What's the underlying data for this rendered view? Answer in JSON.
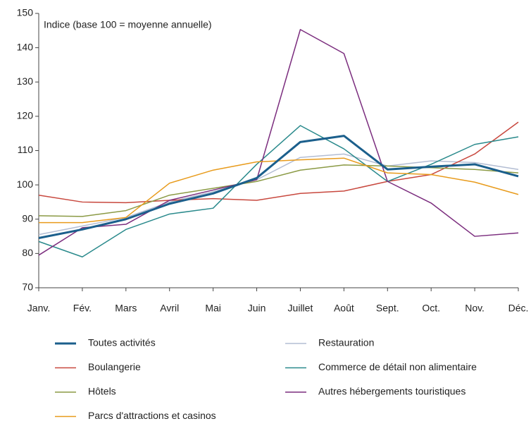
{
  "chart_data": {
    "type": "line",
    "annotation": "Indice (base 100 = moyenne annuelle)",
    "categories": [
      "Janv.",
      "Fév.",
      "Mars",
      "Avril",
      "Mai",
      "Juin",
      "Juillet",
      "Août",
      "Sept.",
      "Oct.",
      "Nov.",
      "Déc."
    ],
    "ylim": [
      70,
      150
    ],
    "yticks": [
      70,
      80,
      90,
      100,
      110,
      120,
      130,
      140,
      150
    ],
    "grid": false,
    "series": [
      {
        "name": "Toutes activités",
        "color": "#1b5f8c",
        "linewidth": 3,
        "values": [
          84.5,
          87,
          90,
          94.5,
          97.5,
          102,
          112.5,
          114.3,
          104.5,
          105.3,
          106,
          102.5
        ]
      },
      {
        "name": "Restauration",
        "color": "#b3bdd3",
        "linewidth": 1.5,
        "values": [
          85.5,
          88,
          90.5,
          95,
          98,
          101.5,
          108,
          109,
          105.5,
          107,
          106.5,
          104.5
        ]
      },
      {
        "name": "Boulangerie",
        "color": "#c8483e",
        "linewidth": 1.5,
        "values": [
          97,
          95,
          94.8,
          95.5,
          96,
          95.5,
          97.5,
          98.2,
          101,
          103,
          109,
          118.3
        ]
      },
      {
        "name": "Commerce de détail non alimentaire",
        "color": "#2a8a8c",
        "linewidth": 1.5,
        "values": [
          83.5,
          79,
          87,
          91.5,
          93.2,
          106,
          117.3,
          110.5,
          101,
          106,
          111.8,
          114
        ]
      },
      {
        "name": "Hôtels",
        "color": "#8b9a45",
        "linewidth": 1.5,
        "values": [
          91,
          90.8,
          92.5,
          97,
          99,
          101,
          104.3,
          105.8,
          105.5,
          105,
          104.5,
          103.5
        ]
      },
      {
        "name": "Autres hébergements touristiques",
        "color": "#7b2d7e",
        "linewidth": 1.5,
        "values": [
          79.5,
          87.5,
          88.5,
          95.5,
          98.5,
          101.5,
          145.3,
          138.3,
          101,
          94.7,
          85,
          86
        ]
      },
      {
        "name": "Parcs d'attractions et casinos",
        "color": "#e89b1c",
        "linewidth": 1.5,
        "values": [
          89,
          89,
          90.5,
          100.5,
          104.3,
          106.7,
          107.3,
          107.8,
          103.5,
          103,
          100.8,
          97.2
        ]
      }
    ]
  }
}
